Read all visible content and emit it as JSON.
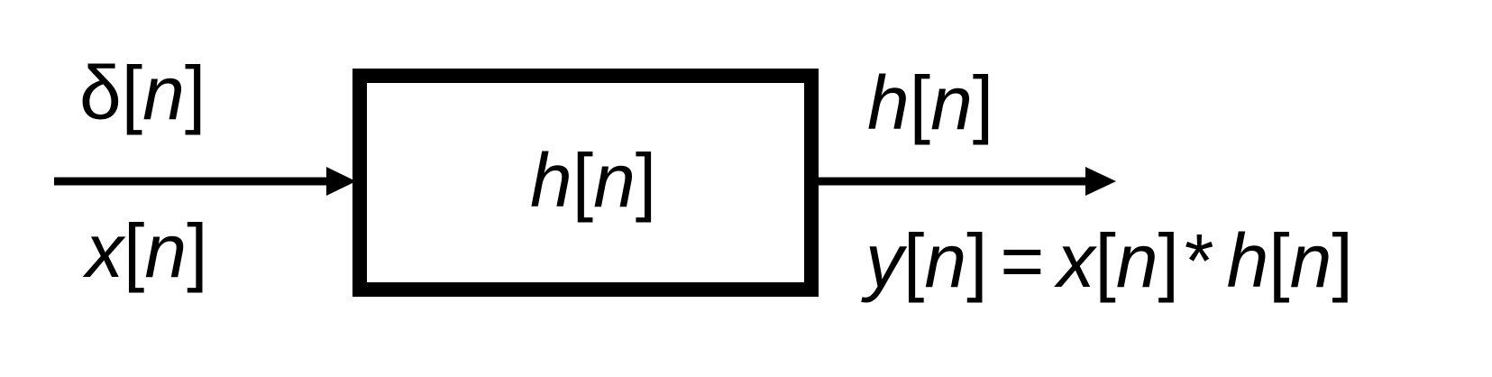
{
  "diagram": {
    "input_impulse": {
      "func": "δ",
      "arg": "n"
    },
    "input_signal": {
      "func": "x",
      "arg": "n"
    },
    "system": {
      "func": "h",
      "arg": "n"
    },
    "output_impulse_response": {
      "func": "h",
      "arg": "n"
    },
    "output_equation": {
      "lhs_func": "y",
      "lhs_arg": "n",
      "equals": "=",
      "x_func": "x",
      "x_arg": "n",
      "op": "*",
      "h_func": "h",
      "h_arg": "n"
    },
    "colors": {
      "stroke": "#000000",
      "background": "#ffffff"
    }
  }
}
